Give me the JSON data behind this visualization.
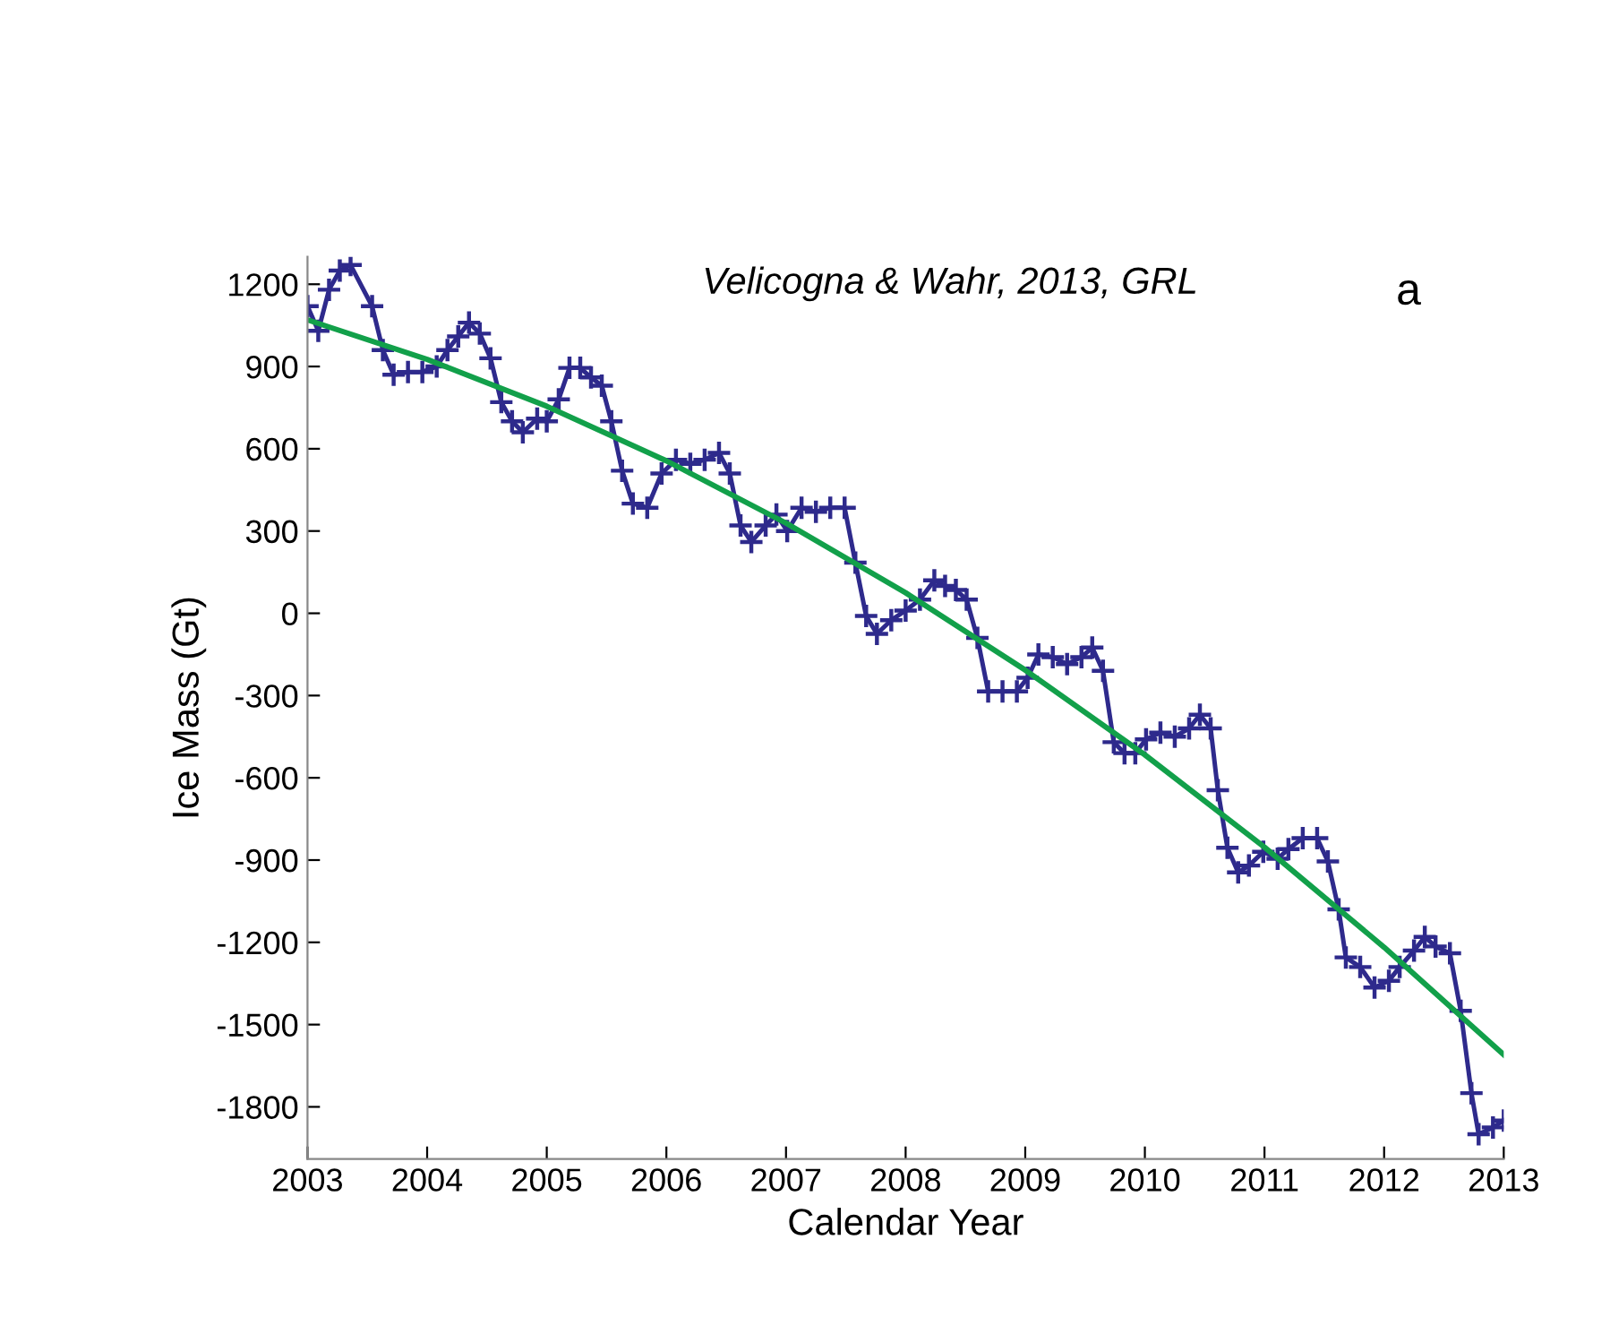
{
  "chart_data": {
    "type": "line",
    "xlabel": "Calendar Year",
    "ylabel": "Ice Mass (Gt)",
    "annotations": [
      "Velicogna & Wahr, 2013, GRL",
      "a"
    ],
    "xlim": [
      2003,
      2013
    ],
    "xticks": [
      2003,
      2004,
      2005,
      2006,
      2007,
      2008,
      2009,
      2010,
      2011,
      2012,
      2013
    ],
    "ylim": [
      -1990,
      1300
    ],
    "yticks": [
      -1800,
      -1500,
      -1200,
      -900,
      -600,
      -300,
      0,
      300,
      600,
      900,
      1200
    ],
    "grid": false,
    "legend": false,
    "series": [
      {
        "color": "#2e2a8c",
        "marker": "cross",
        "line_style": "solid",
        "x": [
          2003.0,
          2003.09,
          2003.18,
          2003.27,
          2003.36,
          2003.54,
          2003.63,
          2003.72,
          2003.84,
          2003.96,
          2004.08,
          2004.17,
          2004.26,
          2004.35,
          2004.44,
          2004.53,
          2004.62,
          2004.71,
          2004.8,
          2004.92,
          2005.0,
          2005.1,
          2005.19,
          2005.28,
          2005.37,
          2005.46,
          2005.54,
          2005.63,
          2005.72,
          2005.84,
          2005.96,
          2006.08,
          2006.2,
          2006.32,
          2006.44,
          2006.53,
          2006.62,
          2006.71,
          2006.83,
          2006.92,
          2007.01,
          2007.13,
          2007.25,
          2007.37,
          2007.49,
          2007.58,
          2007.67,
          2007.76,
          2007.88,
          2008.0,
          2008.12,
          2008.24,
          2008.33,
          2008.42,
          2008.51,
          2008.6,
          2008.69,
          2008.81,
          2008.93,
          2009.02,
          2009.11,
          2009.23,
          2009.35,
          2009.47,
          2009.56,
          2009.65,
          2009.74,
          2009.83,
          2009.92,
          2010.01,
          2010.13,
          2010.25,
          2010.37,
          2010.46,
          2010.55,
          2010.61,
          2010.69,
          2010.78,
          2010.87,
          2010.99,
          2011.11,
          2011.2,
          2011.32,
          2011.44,
          2011.53,
          2011.62,
          2011.68,
          2011.8,
          2011.92,
          2012.04,
          2012.13,
          2012.25,
          2012.34,
          2012.43,
          2012.55,
          2012.64,
          2012.73,
          2012.79,
          2012.91,
          2013.0
        ],
        "values": [
          1120,
          1030,
          1180,
          1250,
          1270,
          1120,
          960,
          870,
          880,
          880,
          900,
          960,
          1010,
          1060,
          1020,
          930,
          770,
          700,
          660,
          710,
          700,
          780,
          895,
          895,
          860,
          830,
          700,
          520,
          400,
          385,
          510,
          560,
          545,
          560,
          585,
          510,
          320,
          260,
          320,
          360,
          300,
          385,
          370,
          385,
          385,
          185,
          -10,
          -75,
          -25,
          10,
          50,
          120,
          100,
          85,
          50,
          -90,
          -285,
          -285,
          -285,
          -235,
          -150,
          -160,
          -185,
          -160,
          -125,
          -210,
          -470,
          -510,
          -510,
          -460,
          -435,
          -450,
          -420,
          -370,
          -420,
          -645,
          -855,
          -945,
          -920,
          -870,
          -895,
          -860,
          -820,
          -820,
          -905,
          -1080,
          -1255,
          -1290,
          -1365,
          -1340,
          -1290,
          -1230,
          -1180,
          -1215,
          -1240,
          -1450,
          -1750,
          -1900,
          -1875,
          -1850
        ]
      },
      {
        "color": "#12a04a",
        "marker": "none",
        "line_style": "solid",
        "x": [
          2003,
          2004,
          2005,
          2006,
          2007,
          2008,
          2009,
          2010,
          2011,
          2012,
          2013
        ],
        "values": [
          1070,
          926,
          755,
          556,
          329,
          75,
          -207,
          -516,
          -853,
          -1218,
          -1610
        ]
      }
    ]
  }
}
